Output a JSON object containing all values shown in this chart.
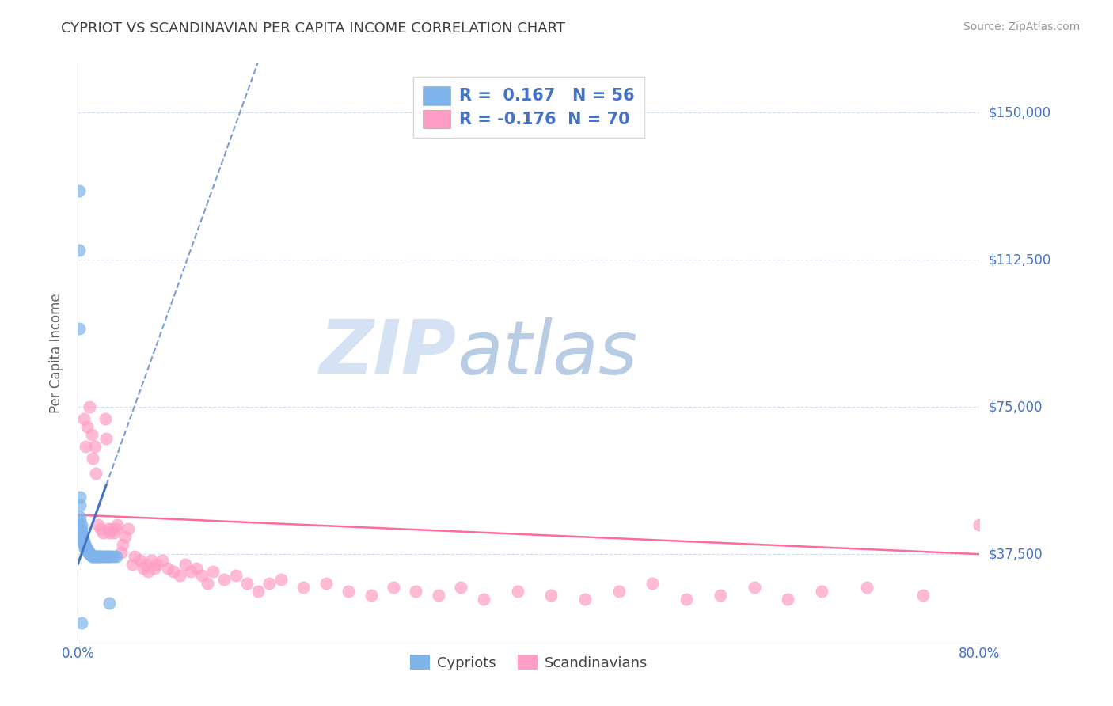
{
  "title": "CYPRIOT VS SCANDINAVIAN PER CAPITA INCOME CORRELATION CHART",
  "source_text": "Source: ZipAtlas.com",
  "ylabel": "Per Capita Income",
  "xlim": [
    0.0,
    0.8
  ],
  "ylim": [
    15000,
    162500
  ],
  "yticks": [
    37500,
    75000,
    112500,
    150000
  ],
  "ytick_labels": [
    "$37,500",
    "$75,000",
    "$112,500",
    "$150,000"
  ],
  "xticks": [
    0.0,
    0.8
  ],
  "xtick_labels": [
    "0.0%",
    "80.0%"
  ],
  "cypriot_color": "#7EB4EA",
  "scandinavian_color": "#FF9EC4",
  "trend_cypriot_color": "#4472C4",
  "trend_scandinavian_color": "#FF6B9D",
  "background_color": "#FFFFFF",
  "grid_color": "#C5D5E8",
  "watermark_zip_color": "#C8D8EE",
  "watermark_atlas_color": "#A8C4E0",
  "title_color": "#404040",
  "axis_label_color": "#606060",
  "tick_label_color": "#4472C4",
  "cypriot_R": 0.167,
  "cypriot_N": 56,
  "scandinavian_R": -0.176,
  "scandinavian_N": 70,
  "cypriot_x": [
    0.001,
    0.001,
    0.001,
    0.002,
    0.002,
    0.002,
    0.002,
    0.002,
    0.003,
    0.003,
    0.003,
    0.003,
    0.003,
    0.003,
    0.003,
    0.004,
    0.004,
    0.004,
    0.004,
    0.004,
    0.005,
    0.005,
    0.005,
    0.005,
    0.006,
    0.006,
    0.006,
    0.007,
    0.007,
    0.008,
    0.008,
    0.008,
    0.009,
    0.01,
    0.01,
    0.011,
    0.012,
    0.013,
    0.014,
    0.015,
    0.016,
    0.017,
    0.018,
    0.019,
    0.02,
    0.021,
    0.022,
    0.024,
    0.025,
    0.027,
    0.028,
    0.03,
    0.032,
    0.034,
    0.003,
    0.028
  ],
  "cypriot_y": [
    130000,
    115000,
    95000,
    52000,
    50000,
    47000,
    46000,
    44000,
    45000,
    44000,
    43000,
    43000,
    42500,
    42000,
    42000,
    42000,
    41500,
    41000,
    41000,
    40500,
    41000,
    40500,
    40000,
    40000,
    40000,
    39500,
    39000,
    39500,
    39000,
    39000,
    38500,
    38500,
    38000,
    38000,
    37500,
    37500,
    37000,
    37000,
    37000,
    37000,
    37000,
    37000,
    37000,
    37000,
    37000,
    37000,
    37000,
    37000,
    37000,
    37000,
    37000,
    37000,
    37000,
    37000,
    20000,
    25000
  ],
  "scandinavian_x": [
    0.005,
    0.007,
    0.008,
    0.01,
    0.012,
    0.013,
    0.015,
    0.016,
    0.018,
    0.02,
    0.022,
    0.024,
    0.025,
    0.027,
    0.028,
    0.03,
    0.032,
    0.034,
    0.035,
    0.038,
    0.04,
    0.042,
    0.045,
    0.048,
    0.05,
    0.055,
    0.058,
    0.06,
    0.062,
    0.065,
    0.068,
    0.07,
    0.075,
    0.08,
    0.085,
    0.09,
    0.095,
    0.1,
    0.105,
    0.11,
    0.115,
    0.12,
    0.13,
    0.14,
    0.15,
    0.16,
    0.17,
    0.18,
    0.2,
    0.22,
    0.24,
    0.26,
    0.28,
    0.3,
    0.32,
    0.34,
    0.36,
    0.39,
    0.42,
    0.45,
    0.48,
    0.51,
    0.54,
    0.57,
    0.6,
    0.63,
    0.66,
    0.7,
    0.75,
    0.8
  ],
  "scandinavian_y": [
    72000,
    65000,
    70000,
    75000,
    68000,
    62000,
    65000,
    58000,
    45000,
    44000,
    43000,
    72000,
    67000,
    44000,
    43000,
    44000,
    43000,
    44000,
    45000,
    38000,
    40000,
    42000,
    44000,
    35000,
    37000,
    36000,
    34000,
    35000,
    33000,
    36000,
    34000,
    35000,
    36000,
    34000,
    33000,
    32000,
    35000,
    33000,
    34000,
    32000,
    30000,
    33000,
    31000,
    32000,
    30000,
    28000,
    30000,
    31000,
    29000,
    30000,
    28000,
    27000,
    29000,
    28000,
    27000,
    29000,
    26000,
    28000,
    27000,
    26000,
    28000,
    30000,
    26000,
    27000,
    29000,
    26000,
    28000,
    29000,
    27000,
    45000
  ]
}
